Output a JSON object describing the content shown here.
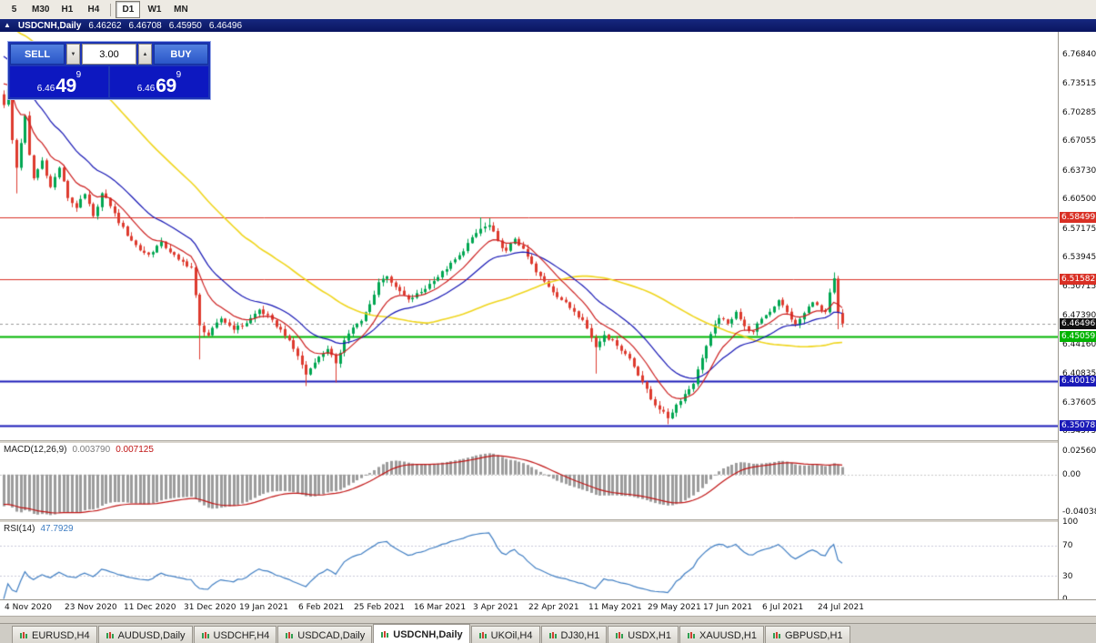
{
  "toolbar": {
    "periods": [
      {
        "label": "5"
      },
      {
        "label": "M30"
      },
      {
        "label": "H1"
      },
      {
        "label": "H4"
      },
      {
        "separator": true
      },
      {
        "label": "D1",
        "active": true
      },
      {
        "label": "W1"
      },
      {
        "label": "MN"
      }
    ]
  },
  "icons": {
    "collapse": "▲",
    "spin_up": "▲",
    "spin_down": "▼"
  },
  "chart_title": {
    "symbol": "USDCNH,Daily",
    "open": "6.46262",
    "high": "6.46708",
    "low": "6.45950",
    "close": "6.46496"
  },
  "trade_panel": {
    "sell_label": "SELL",
    "buy_label": "BUY",
    "lot_size": "3.00",
    "sell_price": {
      "prefix": "6.46",
      "big": "49",
      "sup": "9"
    },
    "buy_price": {
      "prefix": "6.46",
      "big": "69",
      "sup": "9"
    }
  },
  "chart_data": {
    "type": "candlestick",
    "symbol": "USDCNH",
    "timeframe": "Daily",
    "bars": 198,
    "bar_start_x": 4,
    "bar_spacing": 4.68,
    "price_scale_top": 6.794,
    "price_scale_bottom": 6.334,
    "up_color": "#00a651",
    "down_color": "#dd3a2e",
    "y_ticks": [
      "6.76840",
      "6.73515",
      "6.70285",
      "6.67055",
      "6.63730",
      "6.60500",
      "6.57175",
      "6.53945",
      "6.50715",
      "6.47390",
      "6.44160",
      "6.40835",
      "6.37605",
      "6.34375"
    ],
    "x_labels": [
      [
        2,
        "4 Nov 2020"
      ],
      [
        16,
        "23 Nov 2020"
      ],
      [
        30,
        "11 Dec 2020"
      ],
      [
        44,
        "31 Dec 2020"
      ],
      [
        57,
        "19 Jan 2021"
      ],
      [
        71,
        "6 Feb 2021"
      ],
      [
        84,
        "25 Feb 2021"
      ],
      [
        98,
        "16 Mar 2021"
      ],
      [
        112,
        "3 Apr 2021"
      ],
      [
        125,
        "22 Apr 2021"
      ],
      [
        139,
        "11 May 2021"
      ],
      [
        153,
        "29 May 2021"
      ],
      [
        166,
        "17 Jun 2021"
      ],
      [
        180,
        "6 Jul 2021"
      ],
      [
        193,
        "24 Jul 2021"
      ]
    ],
    "levels": [
      {
        "price": 6.58499,
        "label": "6.58499",
        "color": "#d93025",
        "width": 1
      },
      {
        "price": 6.51582,
        "label": "6.51582",
        "color": "#d93025",
        "width": 1
      },
      {
        "price": 6.45059,
        "label": "6.45059",
        "color": "#00b400",
        "width": 2
      },
      {
        "price": 6.40019,
        "label": "6.40019",
        "color": "#1a1ab8",
        "width": 2
      },
      {
        "price": 6.35078,
        "label": "6.35078",
        "color": "#1a1ab8",
        "width": 2
      }
    ],
    "current_price": {
      "value": 6.46496,
      "label": "6.46496",
      "color": "#111111"
    },
    "moving_averages": [
      {
        "type": "sma",
        "period": 55,
        "color": "#efd51d",
        "width": 1.6
      },
      {
        "type": "ema",
        "period": 22,
        "color": "#1616b4",
        "width": 1.2
      },
      {
        "type": "ema",
        "period": 10,
        "color": "#cc1f1f",
        "width": 1.2
      }
    ],
    "close_anchors": [
      [
        0,
        6.712
      ],
      [
        1,
        6.729
      ],
      [
        2,
        6.672
      ],
      [
        3,
        6.641
      ],
      [
        4,
        6.669
      ],
      [
        5,
        6.699
      ],
      [
        6,
        6.655
      ],
      [
        7,
        6.629
      ],
      [
        9,
        6.649
      ],
      [
        11,
        6.619
      ],
      [
        13,
        6.641
      ],
      [
        15,
        6.607
      ],
      [
        17,
        6.596
      ],
      [
        19,
        6.611
      ],
      [
        21,
        6.586
      ],
      [
        23,
        6.612
      ],
      [
        25,
        6.598
      ],
      [
        27,
        6.579
      ],
      [
        30,
        6.559
      ],
      [
        32,
        6.548
      ],
      [
        34,
        6.543
      ],
      [
        37,
        6.557
      ],
      [
        39,
        6.546
      ],
      [
        41,
        6.537
      ],
      [
        44,
        6.529
      ],
      [
        45,
        6.497
      ],
      [
        46,
        6.463
      ],
      [
        48,
        6.452
      ],
      [
        51,
        6.471
      ],
      [
        54,
        6.459
      ],
      [
        57,
        6.466
      ],
      [
        60,
        6.481
      ],
      [
        63,
        6.469
      ],
      [
        66,
        6.452
      ],
      [
        69,
        6.429
      ],
      [
        71,
        6.408
      ],
      [
        73,
        6.422
      ],
      [
        76,
        6.437
      ],
      [
        78,
        6.42
      ],
      [
        80,
        6.447
      ],
      [
        82,
        6.461
      ],
      [
        84,
        6.468
      ],
      [
        86,
        6.487
      ],
      [
        88,
        6.512
      ],
      [
        90,
        6.519
      ],
      [
        92,
        6.506
      ],
      [
        95,
        6.492
      ],
      [
        98,
        6.501
      ],
      [
        101,
        6.514
      ],
      [
        104,
        6.527
      ],
      [
        107,
        6.542
      ],
      [
        110,
        6.562
      ],
      [
        112,
        6.572
      ],
      [
        114,
        6.576
      ],
      [
        116,
        6.558
      ],
      [
        118,
        6.547
      ],
      [
        120,
        6.561
      ],
      [
        122,
        6.549
      ],
      [
        125,
        6.523
      ],
      [
        128,
        6.507
      ],
      [
        131,
        6.492
      ],
      [
        134,
        6.479
      ],
      [
        136,
        6.47
      ],
      [
        139,
        6.439
      ],
      [
        141,
        6.453
      ],
      [
        144,
        6.441
      ],
      [
        147,
        6.426
      ],
      [
        150,
        6.4
      ],
      [
        152,
        6.38
      ],
      [
        154,
        6.369
      ],
      [
        156,
        6.359
      ],
      [
        158,
        6.374
      ],
      [
        160,
        6.386
      ],
      [
        162,
        6.398
      ],
      [
        164,
        6.427
      ],
      [
        166,
        6.453
      ],
      [
        168,
        6.472
      ],
      [
        170,
        6.465
      ],
      [
        172,
        6.479
      ],
      [
        174,
        6.462
      ],
      [
        176,
        6.456
      ],
      [
        178,
        6.471
      ],
      [
        180,
        6.479
      ],
      [
        182,
        6.492
      ],
      [
        184,
        6.478
      ],
      [
        186,
        6.464
      ],
      [
        188,
        6.477
      ],
      [
        190,
        6.49
      ],
      [
        192,
        6.48
      ],
      [
        193,
        6.478
      ],
      [
        194,
        6.5
      ],
      [
        195,
        6.516
      ],
      [
        196,
        6.477
      ],
      [
        197,
        6.465
      ]
    ],
    "wick_overrides": {
      "1": {
        "high": 6.758
      },
      "3": {
        "low": 6.612
      },
      "46": {
        "low": 6.425
      },
      "71": {
        "low": 6.395
      },
      "78": {
        "low": 6.399
      },
      "112": {
        "high": 6.585
      },
      "114": {
        "high": 6.584
      },
      "139": {
        "low": 6.409
      },
      "156": {
        "low": 6.352
      },
      "195": {
        "high": 6.523
      },
      "196": {
        "low": 6.459
      }
    },
    "synthesis": {
      "warmup_bars": 34,
      "warmup_start_price": 6.9,
      "noise_amp": 0.0045,
      "wick_amp": 0.0045
    },
    "indicators": {
      "macd": {
        "label": "MACD(12,26,9)",
        "value_main": "0.003790",
        "value_signal": "0.007125",
        "hist_color": "#9c9c9c",
        "signal_color": "#c01414",
        "zero_color": "#c8c8c8",
        "scale_top": 0.034,
        "scale_bottom": -0.048,
        "axis_labels": [
          {
            "value": 0.0256,
            "text": "0.02560"
          },
          {
            "value": 0,
            "text": "0.00"
          },
          {
            "value": -0.04038,
            "text": "-0.04038"
          }
        ]
      },
      "rsi": {
        "label": "RSI(14)",
        "value": "47.7929",
        "line_color": "#3e7dc2",
        "level_color": "#c8c8d8",
        "levels": [
          70,
          30
        ],
        "axis_labels": [
          {
            "value": 100,
            "text": "100"
          },
          {
            "value": 70,
            "text": "70"
          },
          {
            "value": 30,
            "text": "30"
          },
          {
            "value": 0,
            "text": "0"
          }
        ]
      }
    }
  },
  "bottom_tabs": {
    "active": "USDCNH,Daily",
    "items": [
      {
        "label": "EURUSD,H4"
      },
      {
        "label": "AUDUSD,Daily"
      },
      {
        "label": "USDCHF,H4"
      },
      {
        "label": "USDCAD,Daily"
      },
      {
        "label": "USDCNH,Daily",
        "active": true
      },
      {
        "label": "UKOil,H4"
      },
      {
        "label": "DJ30,H1"
      },
      {
        "label": "USDX,H1"
      },
      {
        "label": "XAUUSD,H1"
      },
      {
        "label": "GBPUSD,H1"
      }
    ]
  }
}
